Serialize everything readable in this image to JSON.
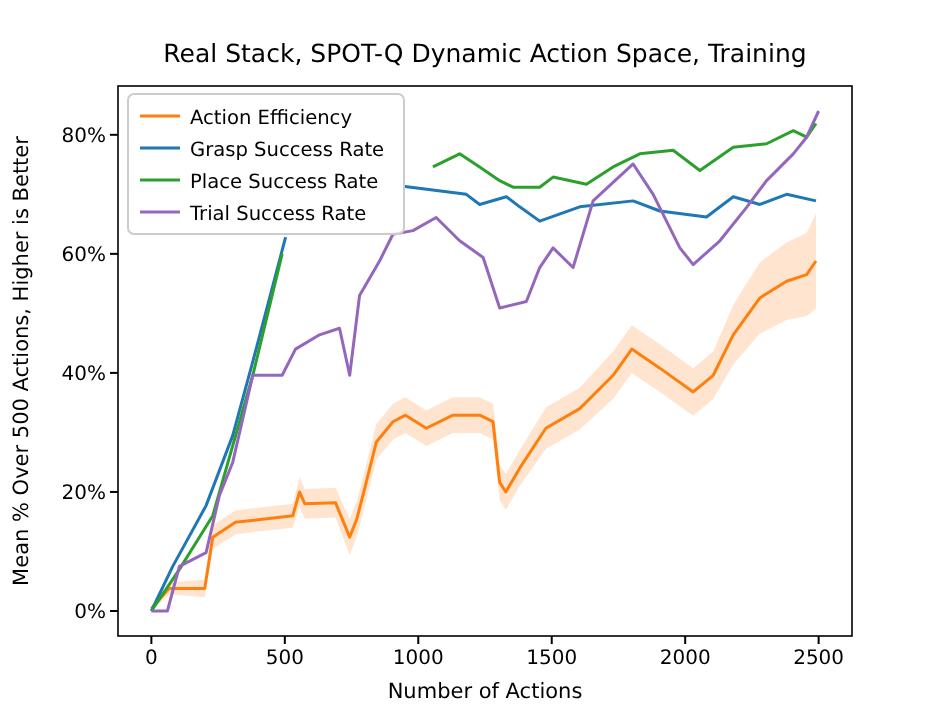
{
  "chart_data": {
    "type": "line",
    "title": "Real Stack, SPOT-Q Dynamic Action Space, Training",
    "xlabel": "Number of Actions",
    "ylabel": "Mean % Over 500 Actions, Higher is Better",
    "xlim": [
      -125,
      2625
    ],
    "xticks": [
      0,
      500,
      1000,
      1500,
      2000,
      2500
    ],
    "ylim": [
      -4.2,
      88.2
    ],
    "yticks": [
      {
        "value": 0,
        "label": "0%"
      },
      {
        "value": 20,
        "label": "20%"
      },
      {
        "value": 40,
        "label": "40%"
      },
      {
        "value": 60,
        "label": "60%"
      },
      {
        "value": 80,
        "label": "80%"
      }
    ],
    "legend": "top left",
    "grid": false,
    "series": [
      {
        "name": "Action Efficiency",
        "color": "#ff7f0e",
        "x": [
          0,
          67,
          200,
          230,
          315,
          530,
          555,
          575,
          690,
          743,
          770,
          805,
          843,
          905,
          952,
          1030,
          1130,
          1230,
          1280,
          1305,
          1328,
          1380,
          1478,
          1605,
          1730,
          1800,
          1905,
          2030,
          2105,
          2180,
          2280,
          2380,
          2455,
          2490
        ],
        "values": [
          0.4,
          3.8,
          3.8,
          12.4,
          14.9,
          16,
          20,
          18,
          18.2,
          12.4,
          15.5,
          21.6,
          28.4,
          31.8,
          32.9,
          30.7,
          32.9,
          32.9,
          31.8,
          21.6,
          20,
          24,
          30.7,
          34,
          39.6,
          44,
          40.8,
          36.8,
          39.6,
          46.4,
          52.6,
          55.4,
          56.5,
          58.8
        ],
        "lower": [
          0,
          2.8,
          2.3,
          10.4,
          12.9,
          14,
          17.5,
          15.5,
          15.7,
          9.4,
          12.5,
          18.6,
          25.4,
          28.8,
          29.9,
          27.7,
          29.9,
          29.9,
          28.8,
          18.6,
          17,
          21,
          27.2,
          30.5,
          35.6,
          40,
          36.8,
          32.8,
          35.6,
          41.4,
          46.6,
          48.9,
          49.5,
          50.8
        ],
        "upper": [
          0.9,
          4.8,
          5.3,
          14.4,
          16.9,
          18,
          22.5,
          20.5,
          20.7,
          15.4,
          18.5,
          24.6,
          31.4,
          34.8,
          35.9,
          33.7,
          35.9,
          35.9,
          34.8,
          24.6,
          23,
          27,
          34.2,
          37.5,
          43.6,
          48,
          44.8,
          40.8,
          43.6,
          51.4,
          58.6,
          61.9,
          63.5,
          66.8
        ]
      },
      {
        "name": "Grasp Success Rate",
        "color": "#1f77b4",
        "x": [
          0,
          80,
          205,
          305,
          380,
          503,
          600,
          700,
          800,
          950,
          1180,
          1230,
          1330,
          1380,
          1455,
          1605,
          1805,
          1905,
          2080,
          2180,
          2280,
          2380,
          2490
        ],
        "values": [
          0,
          7.5,
          17.7,
          29.5,
          41.9,
          62.8,
          null,
          null,
          null,
          71.3,
          70,
          68.3,
          69.6,
          67.9,
          65.5,
          67.9,
          68.9,
          67.2,
          66.2,
          69.6,
          68.3,
          70,
          68.9
        ]
      },
      {
        "name": "Place Success Rate",
        "color": "#2ca02c",
        "x": [
          0,
          105,
          230,
          380,
          490,
          600,
          700,
          850,
          952,
          1055,
          1155,
          1230,
          1305,
          1355,
          1455,
          1505,
          1630,
          1730,
          1830,
          1955,
          2055,
          2180,
          2305,
          2405,
          2455,
          2490
        ],
        "values": [
          0,
          7,
          16,
          39.6,
          60,
          null,
          null,
          null,
          null,
          74.6,
          76.8,
          74.6,
          72.3,
          71.2,
          71.2,
          72.9,
          71.7,
          74.6,
          76.8,
          77.4,
          74,
          77.9,
          78.5,
          80.7,
          79.6,
          81.9
        ]
      },
      {
        "name": "Trial Success Rate",
        "color": "#9467bd",
        "x": [
          0,
          60,
          105,
          205,
          255,
          305,
          380,
          490,
          540,
          630,
          705,
          743,
          780,
          855,
          905,
          980,
          1067,
          1155,
          1243,
          1305,
          1405,
          1455,
          1505,
          1580,
          1655,
          1805,
          1880,
          1980,
          2030,
          2130,
          2230,
          2305,
          2405,
          2455,
          2500
        ],
        "values": [
          0,
          0,
          7.5,
          9.8,
          19.4,
          25,
          39.6,
          39.6,
          44,
          46.4,
          47.5,
          39.6,
          53,
          58.8,
          63.3,
          63.9,
          66.1,
          62.2,
          59.4,
          50.9,
          52,
          57.7,
          61,
          57.7,
          68.9,
          75.1,
          70,
          61,
          58.2,
          62.2,
          67.8,
          72.3,
          76.8,
          79.6,
          84
        ]
      }
    ]
  }
}
